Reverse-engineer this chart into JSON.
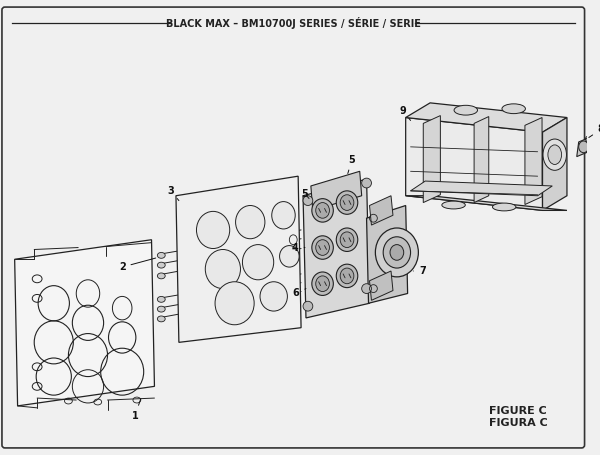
{
  "title": "BLACK MAX – BM10700J SERIES / SÉRIE / SERIE",
  "figure_label": "FIGURE C",
  "figura_label": "FIGURA C",
  "bg_color": "#f0f0f0",
  "border_color": "#222222",
  "line_color": "#222222",
  "fill_light": "#f8f8f8",
  "fill_mid": "#e0e0e0",
  "fill_dark": "#c8c8c8"
}
